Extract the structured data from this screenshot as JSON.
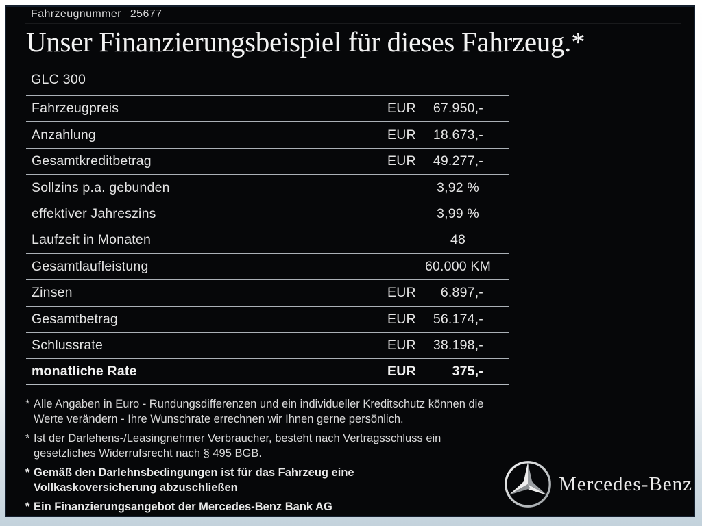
{
  "header": {
    "vehicle_number_label": "Fahrzeugnummer",
    "vehicle_number": "25677",
    "title": "Unser Finanzierungsbeispiel für dieses Fahrzeug.*",
    "model": "GLC 300"
  },
  "finance_table": {
    "rows": [
      {
        "label": "Fahrzeugpreis",
        "currency": "EUR",
        "value": "67.950,-",
        "bold": false
      },
      {
        "label": "Anzahlung",
        "currency": "EUR",
        "value": "18.673,-",
        "bold": false
      },
      {
        "label": "Gesamtkreditbetrag",
        "currency": "EUR",
        "value": "49.277,-",
        "bold": false
      },
      {
        "label": "Sollzins p.a. gebunden",
        "currency": null,
        "value": "3,92 %",
        "bold": false
      },
      {
        "label": "effektiver Jahreszins",
        "currency": null,
        "value": "3,99 %",
        "bold": false
      },
      {
        "label": "Laufzeit in Monaten",
        "currency": null,
        "value": "48",
        "bold": false
      },
      {
        "label": "Gesamtlaufleistung",
        "currency": null,
        "value": "60.000 KM",
        "bold": false
      },
      {
        "label": "Zinsen",
        "currency": "EUR",
        "value": "6.897,-",
        "bold": false
      },
      {
        "label": "Gesamtbetrag",
        "currency": "EUR",
        "value": "56.174,-",
        "bold": false
      },
      {
        "label": "Schlussrate",
        "currency": "EUR",
        "value": "38.198,-",
        "bold": false
      },
      {
        "label": "monatliche Rate",
        "currency": "EUR",
        "value": "375,-",
        "bold": true
      }
    ]
  },
  "footnotes": [
    {
      "marker": "*",
      "bold": false,
      "text": "Alle Angaben in Euro - Rundungsdifferenzen und ein individueller Kreditschutz können die\nWerte verändern - Ihre Wunschrate errechnen wir Ihnen gerne persönlich."
    },
    {
      "marker": "*",
      "bold": false,
      "text": "Ist der Darlehens-/Leasingnehmer Verbraucher, besteht nach Vertragsschluss ein\ngesetzliches Widerrufsrecht nach § 495 BGB."
    },
    {
      "marker": "*",
      "bold": true,
      "text": "Gemäß den Darlehnsbedingungen ist für das Fahrzeug eine\nVollkaskoversicherung abzuschließen"
    },
    {
      "marker": "*",
      "bold": true,
      "text": "Ein Finanzierungsangebot der Mercedes-Benz Bank AG"
    }
  ],
  "brand": {
    "logo_icon": "mercedes-star-icon",
    "wordmark": "Mercedes-Benz"
  },
  "colors": {
    "panel_background": "#060709",
    "panel_border": "#141f2d",
    "text": "#e4e4e4",
    "table_line": "#aab0b6",
    "page_frame_bottom": "#c3d2dc"
  }
}
